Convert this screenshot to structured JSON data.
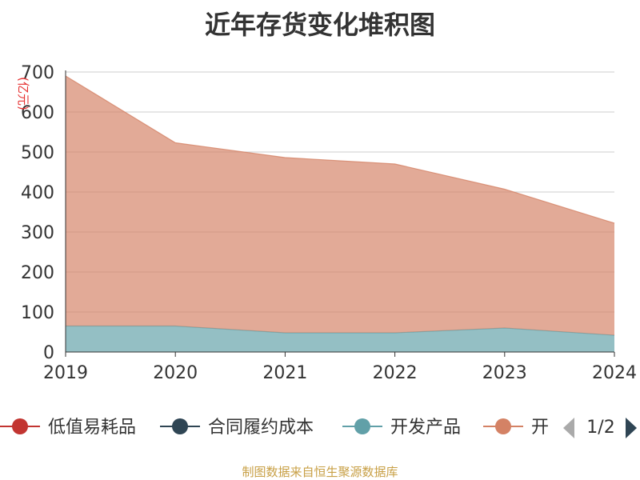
{
  "chart_data": {
    "type": "area",
    "title": "近年存货变化堆积图",
    "ylabel": "(亿元)",
    "x": [
      "2019",
      "2020",
      "2021",
      "2022",
      "2023",
      "2024"
    ],
    "y_ticks": [
      "0",
      "100",
      "200",
      "300",
      "400",
      "500",
      "600",
      "700"
    ],
    "ylim": [
      0,
      700
    ],
    "stacked": true,
    "grid": true,
    "legend_position": "bottom",
    "series": [
      {
        "name": "低值易耗品",
        "values": [
          0,
          0,
          0,
          0,
          0,
          0
        ],
        "color": "#c23531"
      },
      {
        "name": "合同履约成本",
        "values": [
          0,
          0,
          0,
          0,
          0,
          0
        ],
        "color": "#2f4554"
      },
      {
        "name": "开发产品",
        "values": [
          65,
          65,
          48,
          48,
          60,
          42
        ],
        "color": "#61a0a8"
      },
      {
        "name": "开",
        "values": [
          625,
          458,
          438,
          422,
          347,
          280
        ],
        "color": "#d48265"
      }
    ],
    "legend_page": "1/2",
    "source": "制图数据来自恒生聚源数据库"
  }
}
